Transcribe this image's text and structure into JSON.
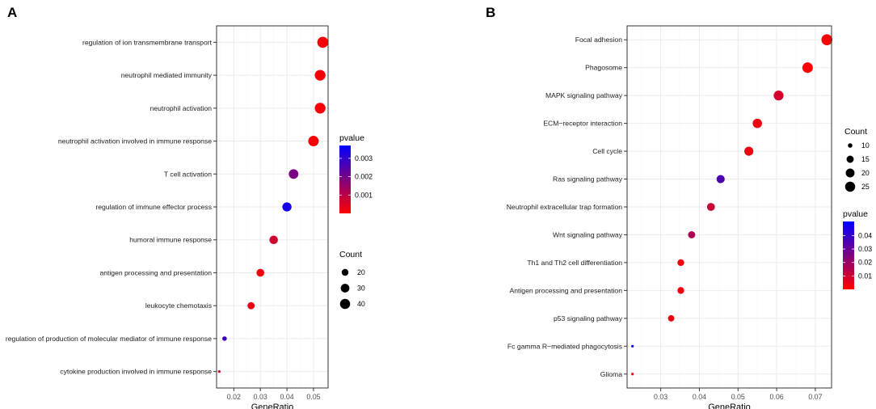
{
  "panels_text": [
    "A",
    "B"
  ],
  "chart_data": [
    {
      "panel": "A",
      "type": "scatter",
      "title": "",
      "xlabel": "GeneRatio",
      "ylabel": "",
      "xlim": [
        0.0135,
        0.0555
      ],
      "xticks": [
        0.02,
        0.03,
        0.04,
        0.05
      ],
      "xtick_labels": [
        "0.02",
        "0.03",
        "0.04",
        "0.05"
      ],
      "categories": [
        "regulation of ion transmembrane transport",
        "neutrophil mediated immunity",
        "neutrophil activation",
        "neutrophil activation involved in immune response",
        "T cell activation",
        "regulation of immune effector process",
        "humoral immune response",
        "antigen processing and presentation",
        "leukocyte chemotaxis",
        "regulation of production of molecular mediator of immune response",
        "cytokine production involved in immune response"
      ],
      "gene_ratio": [
        0.0535,
        0.0525,
        0.0525,
        0.05,
        0.0425,
        0.04,
        0.035,
        0.03,
        0.0265,
        0.0165,
        0.0145
      ],
      "count": [
        47,
        45,
        45,
        43,
        36,
        33,
        29,
        25,
        22,
        13,
        11
      ],
      "pvalue": [
        0.0001,
        0.0001,
        0.0001,
        0.0001,
        0.0019,
        0.0034,
        0.0007,
        0.0002,
        0.0003,
        0.0028,
        0.0007
      ],
      "color_legend": {
        "title": "pvalue",
        "range": [
          0,
          0.0037
        ],
        "low_color": "#FF0000",
        "high_color": "#0000FF",
        "ticks": [
          0.001,
          0.002,
          0.003
        ],
        "tick_labels": [
          "0.001",
          "0.002",
          "0.003"
        ]
      },
      "size_legend": {
        "title": "Count",
        "values": [
          20,
          30,
          40
        ],
        "labels": [
          "20",
          "30",
          "40"
        ],
        "range": [
          11,
          47
        ]
      },
      "legend_order": [
        "pvalue",
        "Count"
      ]
    },
    {
      "panel": "B",
      "type": "scatter",
      "title": "",
      "xlabel": "GeneRatio",
      "ylabel": "",
      "xlim": [
        0.0213,
        0.0742
      ],
      "xticks": [
        0.03,
        0.04,
        0.05,
        0.06,
        0.07
      ],
      "xtick_labels": [
        "0.03",
        "0.04",
        "0.05",
        "0.06",
        "0.07"
      ],
      "categories": [
        "Focal adhesion",
        "Phagosome",
        "MAPK signaling pathway",
        "ECM−receptor interaction",
        "Cell cycle",
        "Ras signaling pathway",
        "Neutrophil extracellular trap formation",
        "Wnt signaling pathway",
        "Th1 and Th2 cell differentiation",
        "Antigen processing and presentation",
        "p53 signaling pathway",
        "Fc gamma R−mediated phagocytosis",
        "Glioma"
      ],
      "gene_ratio": [
        0.073,
        0.068,
        0.0605,
        0.055,
        0.0528,
        0.0455,
        0.043,
        0.038,
        0.0352,
        0.0352,
        0.0327,
        0.0227,
        0.0227
      ],
      "count": [
        29,
        27,
        24,
        22,
        21,
        18,
        17,
        15,
        14,
        14,
        13,
        9,
        9
      ],
      "pvalue": [
        0.0005,
        0.0006,
        0.0085,
        0.003,
        0.0025,
        0.035,
        0.011,
        0.016,
        0.0025,
        0.0025,
        0.003,
        0.049,
        0.002
      ],
      "color_legend": {
        "title": "pvalue",
        "range": [
          0,
          0.0505
        ],
        "low_color": "#FF0000",
        "high_color": "#0000FF",
        "ticks": [
          0.01,
          0.02,
          0.03,
          0.04
        ],
        "tick_labels": [
          "0.01",
          "0.02",
          "0.03",
          "0.04"
        ]
      },
      "size_legend": {
        "title": "Count",
        "values": [
          10,
          15,
          20,
          25
        ],
        "labels": [
          "10",
          "15",
          "20",
          "25"
        ],
        "range": [
          9,
          29
        ]
      },
      "legend_order": [
        "Count",
        "pvalue"
      ]
    }
  ]
}
